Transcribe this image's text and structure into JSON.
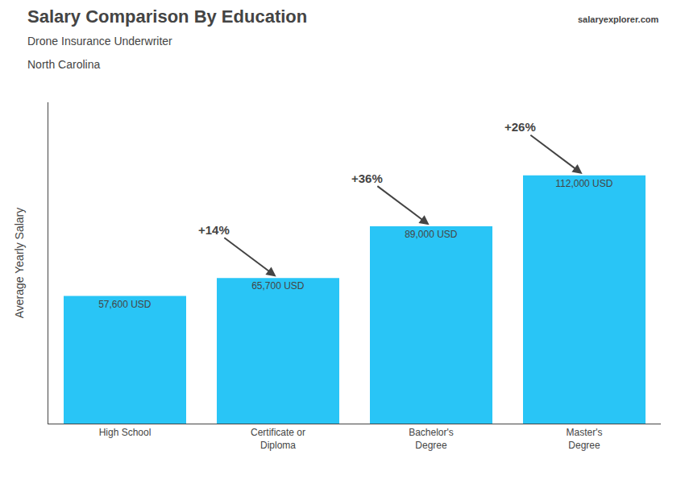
{
  "chart_data": {
    "type": "bar",
    "title": "Salary Comparison By Education",
    "subtitle": [
      "Drone Insurance Underwriter",
      "North Carolina"
    ],
    "categories": [
      "High School",
      "Certificate or\nDiploma",
      "Bachelor's\nDegree",
      "Master's\nDegree"
    ],
    "values": [
      57600,
      65700,
      89000,
      112000
    ],
    "value_labels": [
      "57,600 USD",
      "65,700 USD",
      "89,000 USD",
      "112,000 USD"
    ],
    "data_labels": true,
    "annotations": [
      "+14%",
      "+36%",
      "+26%",
      "salaryexplorer.com"
    ],
    "ylabel": "Average Yearly Salary",
    "color": "#29C5F6",
    "ylim": [
      0,
      145000
    ],
    "yticks": [],
    "grid": false,
    "tick_labels": "x"
  }
}
